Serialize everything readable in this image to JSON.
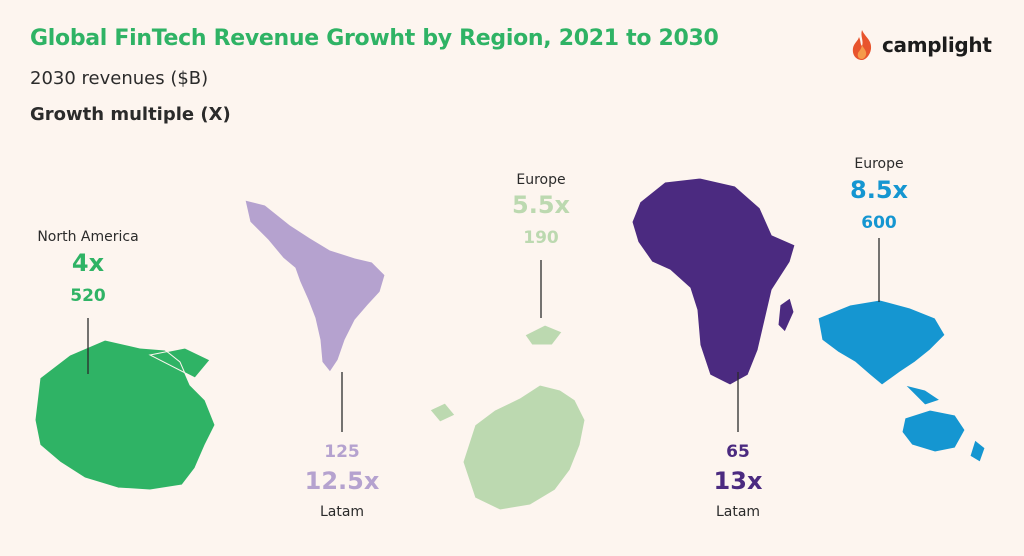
{
  "header": {
    "title": "Global FinTech Revenue Growht by Region, 2021 to 2030",
    "subtitle": "2030 revenues ($B)",
    "legend_label": "Growth multiple (X)"
  },
  "brand": {
    "name": "camplight",
    "icon": "flame-icon",
    "colors": {
      "flame_dark": "#e8542d",
      "flame_light": "#f59a4a"
    }
  },
  "chart_data": {
    "type": "map",
    "title": "Global FinTech Revenue Growht by Region, 2021 to 2030",
    "subtitle": "2030 revenues ($B)",
    "legend_label": "Growth multiple (X)",
    "regions": [
      {
        "label": "North America",
        "multiple": "4x",
        "revenue_label": "520",
        "revenue": 520,
        "multiple_value": 4,
        "color": "#2fb365"
      },
      {
        "label": "Latam",
        "multiple": "12.5x",
        "revenue_label": "125",
        "revenue": 125,
        "multiple_value": 12.5,
        "color": "#b5a2cf"
      },
      {
        "label": "Europe",
        "multiple": "5.5x",
        "revenue_label": "190",
        "revenue": 190,
        "multiple_value": 5.5,
        "color": "#bcd9b0"
      },
      {
        "label": "Latam",
        "multiple": "13x",
        "revenue_label": "65",
        "revenue": 65,
        "multiple_value": 13,
        "color": "#4b2a80"
      },
      {
        "label": "Europe",
        "multiple": "8.5x",
        "revenue_label": "600",
        "revenue": 600,
        "multiple_value": 8.5,
        "color": "#1596d1"
      }
    ]
  }
}
